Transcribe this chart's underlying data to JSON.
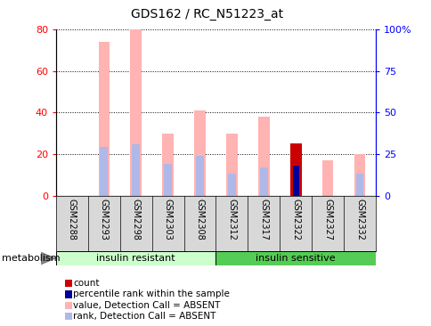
{
  "title": "GDS162 / RC_N51223_at",
  "samples": [
    "GSM2288",
    "GSM2293",
    "GSM2298",
    "GSM2303",
    "GSM2308",
    "GSM2312",
    "GSM2317",
    "GSM2322",
    "GSM2327",
    "GSM2332"
  ],
  "value_absent": [
    0,
    74,
    80,
    30,
    41,
    30,
    38,
    0,
    17,
    20
  ],
  "rank_absent": [
    0,
    29,
    31,
    19,
    24,
    13,
    17,
    0,
    0,
    13
  ],
  "count": [
    0,
    0,
    0,
    0,
    0,
    0,
    0,
    25,
    0,
    0
  ],
  "percentile_rank": [
    0,
    0,
    0,
    0,
    0,
    0,
    0,
    18,
    0,
    0
  ],
  "ylim_left": [
    0,
    80
  ],
  "ylim_right": [
    0,
    100
  ],
  "yticks_left": [
    0,
    20,
    40,
    60,
    80
  ],
  "yticks_right": [
    0,
    25,
    50,
    75,
    100
  ],
  "ytick_labels_left": [
    "0",
    "20",
    "40",
    "60",
    "80"
  ],
  "ytick_labels_right": [
    "0",
    "25",
    "50",
    "75",
    "100%"
  ],
  "color_value_absent": "#ffb3b3",
  "color_rank_absent": "#b0b8e8",
  "color_count": "#cc0000",
  "color_percentile": "#000099",
  "group1_label": "insulin resistant",
  "group2_label": "insulin sensitive",
  "group1_color": "#ccffcc",
  "group2_color": "#55cc55",
  "legend_items": [
    {
      "color": "#cc0000",
      "label": "count"
    },
    {
      "color": "#000099",
      "label": "percentile rank within the sample"
    },
    {
      "color": "#ffb3b3",
      "label": "value, Detection Call = ABSENT"
    },
    {
      "color": "#b0b8e8",
      "label": "rank, Detection Call = ABSENT"
    }
  ]
}
